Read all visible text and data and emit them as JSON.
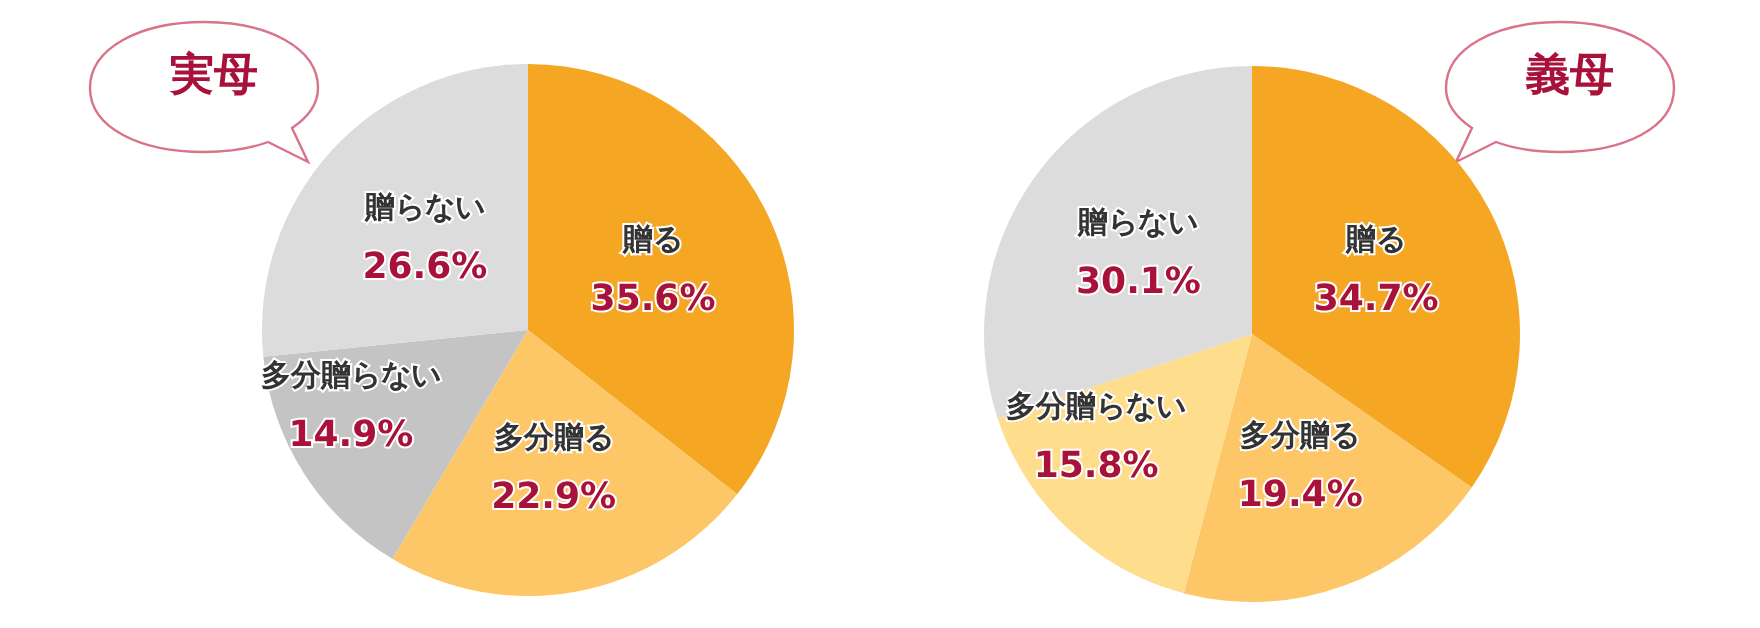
{
  "chart_data": [
    {
      "type": "pie",
      "title": "実母",
      "categories": [
        "贈る",
        "多分贈る",
        "多分贈らない",
        "贈らない"
      ],
      "values": [
        35.6,
        22.9,
        14.9,
        26.6
      ],
      "colors": [
        "#f5a623",
        "#fdc767",
        "#c4c4c4",
        "#dcdcdc"
      ],
      "value_labels": [
        "35.6%",
        "22.9%",
        "14.9%",
        "26.6%"
      ],
      "legend": false
    },
    {
      "type": "pie",
      "title": "義母",
      "categories": [
        "贈る",
        "多分贈る",
        "多分贈らない",
        "贈らない"
      ],
      "values": [
        34.7,
        19.4,
        15.8,
        30.1
      ],
      "colors": [
        "#f5a623",
        "#fdc767",
        "#fedd8c",
        "#dcdcdc"
      ],
      "value_labels": [
        "34.7%",
        "19.4%",
        "15.8%",
        "30.1%"
      ],
      "legend": false
    }
  ]
}
